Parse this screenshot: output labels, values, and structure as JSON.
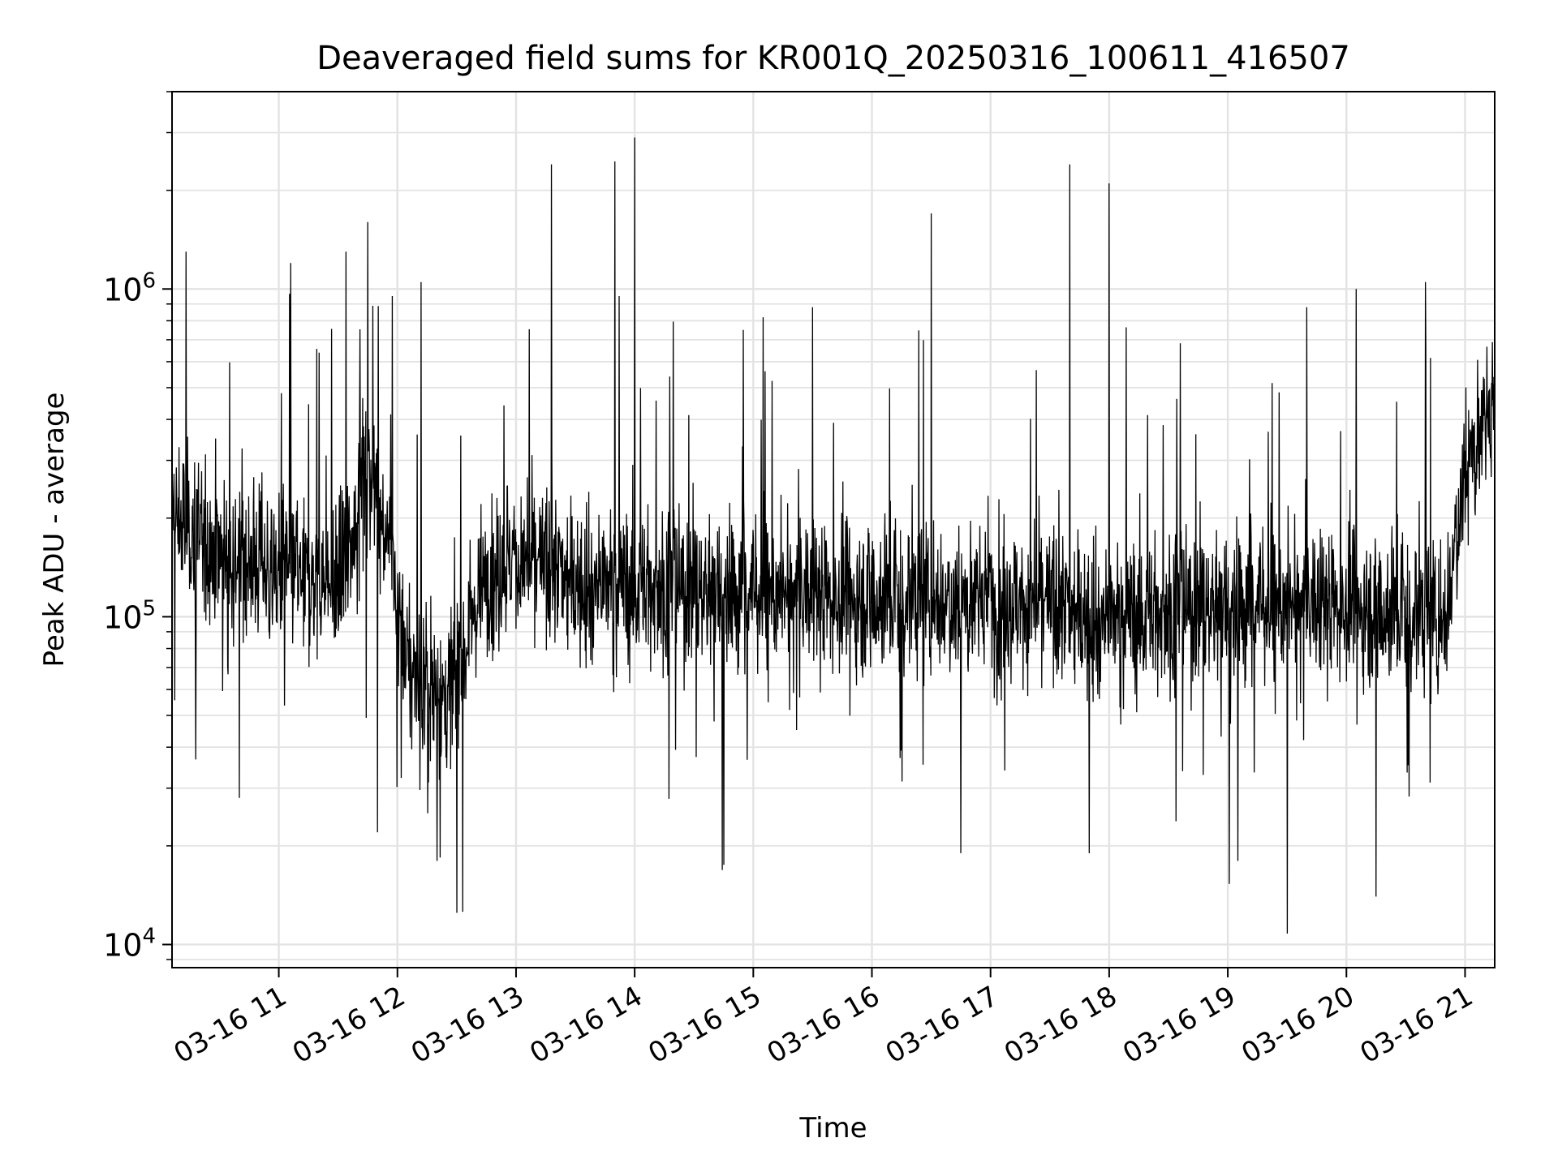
{
  "chart_data": {
    "type": "line",
    "title": "Deaveraged field sums for KR001Q_20250316_100611_416507",
    "xlabel": "Time",
    "ylabel": "Peak ADU - average",
    "yscale": "log",
    "xlim": [
      "2025-03-16 10:06",
      "2025-03-16 21:15"
    ],
    "ylim": [
      8500,
      4000000
    ],
    "grid": true,
    "line_color": "#000000",
    "x_ticks": [
      "03-16 11",
      "03-16 12",
      "03-16 13",
      "03-16 14",
      "03-16 15",
      "03-16 16",
      "03-16 17",
      "03-16 18",
      "03-16 19",
      "03-16 20",
      "03-16 21"
    ],
    "y_ticks": [
      {
        "base": "10",
        "exp": "4",
        "value": 10000
      },
      {
        "base": "10",
        "exp": "5",
        "value": 100000
      },
      {
        "base": "10",
        "exp": "6",
        "value": 1000000
      }
    ],
    "series": [
      {
        "description": "noisy time series of deaveraged field sums, several thousand samples",
        "baseline": [
          [
            "10:06",
            200000
          ],
          [
            "10:30",
            160000
          ],
          [
            "11:00",
            140000
          ],
          [
            "11:30",
            120000
          ],
          [
            "11:45",
            280000
          ],
          [
            "11:55",
            180000
          ],
          [
            "12:05",
            70000
          ],
          [
            "12:25",
            55000
          ],
          [
            "12:45",
            140000
          ],
          [
            "13:00",
            150000
          ],
          [
            "13:30",
            130000
          ],
          [
            "14:00",
            125000
          ],
          [
            "15:00",
            120000
          ],
          [
            "16:00",
            115000
          ],
          [
            "17:00",
            115000
          ],
          [
            "18:00",
            100000
          ],
          [
            "19:00",
            110000
          ],
          [
            "20:00",
            110000
          ],
          [
            "20:50",
            100000
          ],
          [
            "21:00",
            300000
          ],
          [
            "21:15",
            450000
          ]
        ],
        "spikes": [
          [
            "10:13",
            1300000
          ],
          [
            "11:06",
            1200000
          ],
          [
            "11:34",
            1300000
          ],
          [
            "11:45",
            1600000
          ],
          [
            "12:12",
            1050000
          ],
          [
            "13:18",
            2400000
          ],
          [
            "13:50",
            2450000
          ],
          [
            "14:00",
            2900000
          ],
          [
            "14:55",
            750000
          ],
          [
            "15:05",
            820000
          ],
          [
            "15:30",
            880000
          ],
          [
            "16:30",
            1700000
          ],
          [
            "17:40",
            2400000
          ],
          [
            "18:00",
            2100000
          ],
          [
            "19:40",
            880000
          ],
          [
            "20:05",
            1000000
          ],
          [
            "20:40",
            1050000
          ]
        ],
        "dips": [
          [
            "10:40",
            28000
          ],
          [
            "11:50",
            22000
          ],
          [
            "12:20",
            18000
          ],
          [
            "12:30",
            12500
          ],
          [
            "14:45",
            17500
          ],
          [
            "16:45",
            19000
          ],
          [
            "17:50",
            19000
          ],
          [
            "19:05",
            18000
          ],
          [
            "19:30",
            10800
          ],
          [
            "20:15",
            14000
          ]
        ]
      }
    ]
  }
}
